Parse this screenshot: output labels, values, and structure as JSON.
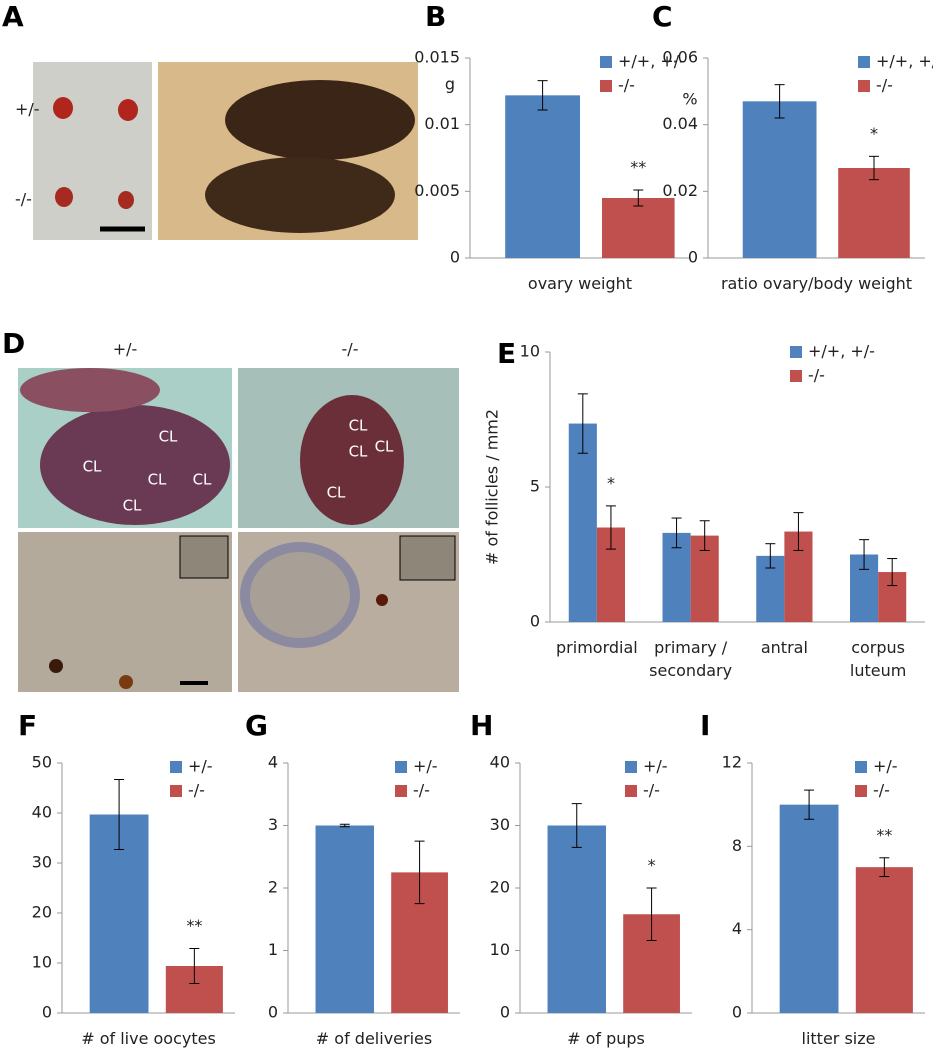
{
  "figure_a": {
    "panel": "A",
    "row_labels": [
      "+/-",
      "-/-"
    ]
  },
  "figure_d": {
    "panel": "D",
    "column_labels": [
      "+/-",
      "-/-"
    ],
    "left_region_labels": [
      "CL",
      "CL",
      "CL",
      "CL",
      "CL"
    ],
    "right_region_labels": [
      "CL",
      "CL",
      "CL",
      "CL"
    ]
  },
  "chart_data": [
    {
      "type": "bar",
      "panel": "B",
      "ylabel": "g",
      "categories": [
        "ovary weight"
      ],
      "series": [
        {
          "name": "+/+, +/-",
          "color": "#4f81bd",
          "values": [
            0.0122
          ],
          "errors": [
            0.0011
          ]
        },
        {
          "name": "-/-",
          "color": "#c0504d",
          "values": [
            0.0045
          ],
          "errors": [
            0.0006
          ]
        }
      ],
      "annotations": [
        "**"
      ],
      "ylim": [
        0,
        0.015
      ],
      "yticks": [
        0,
        0.005,
        0.01,
        0.015
      ],
      "legend": "upper right"
    },
    {
      "type": "bar",
      "panel": "C",
      "ylabel": "%",
      "categories": [
        "ratio ovary/body weight"
      ],
      "series": [
        {
          "name": "+/+, +/-",
          "color": "#4f81bd",
          "values": [
            0.047
          ],
          "errors": [
            0.005
          ]
        },
        {
          "name": "-/-",
          "color": "#c0504d",
          "values": [
            0.027
          ],
          "errors": [
            0.0035
          ]
        }
      ],
      "annotations": [
        "*"
      ],
      "ylim": [
        0,
        0.06
      ],
      "yticks": [
        0,
        0.02,
        0.04,
        0.06
      ],
      "legend": "upper right"
    },
    {
      "type": "bar",
      "panel": "E",
      "ylabel": "# of follicles / mm2",
      "categories": [
        "primordial",
        "primary / secondary",
        "antral",
        "corpus luteum"
      ],
      "series": [
        {
          "name": "+/+, +/-",
          "color": "#4f81bd",
          "values": [
            7.35,
            3.3,
            2.45,
            2.5
          ],
          "errors": [
            1.1,
            0.55,
            0.45,
            0.55
          ]
        },
        {
          "name": "-/-",
          "color": "#c0504d",
          "values": [
            3.5,
            3.2,
            3.35,
            1.85
          ],
          "errors": [
            0.8,
            0.55,
            0.7,
            0.5
          ]
        }
      ],
      "annotations": [
        "*",
        null,
        null,
        null
      ],
      "ylim": [
        0,
        10
      ],
      "yticks": [
        0,
        5,
        10
      ],
      "legend": "upper right"
    },
    {
      "type": "bar",
      "panel": "F",
      "categories": [
        "# of live oocytes"
      ],
      "series": [
        {
          "name": "+/-",
          "color": "#4f81bd",
          "values": [
            39.7
          ],
          "errors": [
            7
          ]
        },
        {
          "name": "-/-",
          "color": "#c0504d",
          "values": [
            9.4
          ],
          "errors": [
            3.5
          ]
        }
      ],
      "annotations": [
        "**"
      ],
      "ylim": [
        0,
        50
      ],
      "yticks": [
        0,
        10,
        20,
        30,
        40,
        50
      ],
      "legend": "upper right"
    },
    {
      "type": "bar",
      "panel": "G",
      "categories": [
        "# of deliveries"
      ],
      "series": [
        {
          "name": "+/-",
          "color": "#4f81bd",
          "values": [
            3.0
          ],
          "errors": [
            0.02
          ]
        },
        {
          "name": "-/-",
          "color": "#c0504d",
          "values": [
            2.25
          ],
          "errors": [
            0.5
          ]
        }
      ],
      "ylim": [
        0,
        4
      ],
      "yticks": [
        0,
        1,
        2,
        3,
        4
      ],
      "legend": "upper right"
    },
    {
      "type": "bar",
      "panel": "H",
      "categories": [
        "# of pups"
      ],
      "series": [
        {
          "name": "+/-",
          "color": "#4f81bd",
          "values": [
            30
          ],
          "errors": [
            3.5
          ]
        },
        {
          "name": "-/-",
          "color": "#c0504d",
          "values": [
            15.8
          ],
          "errors": [
            4.2
          ]
        }
      ],
      "annotations": [
        "*"
      ],
      "ylim": [
        0,
        40
      ],
      "yticks": [
        0,
        10,
        20,
        30,
        40
      ],
      "legend": "upper right"
    },
    {
      "type": "bar",
      "panel": "I",
      "categories": [
        "litter size"
      ],
      "series": [
        {
          "name": "+/-",
          "color": "#4f81bd",
          "values": [
            10
          ],
          "errors": [
            0.7
          ]
        },
        {
          "name": "-/-",
          "color": "#c0504d",
          "values": [
            7
          ],
          "errors": [
            0.45
          ]
        }
      ],
      "annotations": [
        "**"
      ],
      "ylim": [
        0,
        12
      ],
      "yticks": [
        0,
        4,
        8,
        12
      ],
      "legend": "upper right"
    }
  ]
}
